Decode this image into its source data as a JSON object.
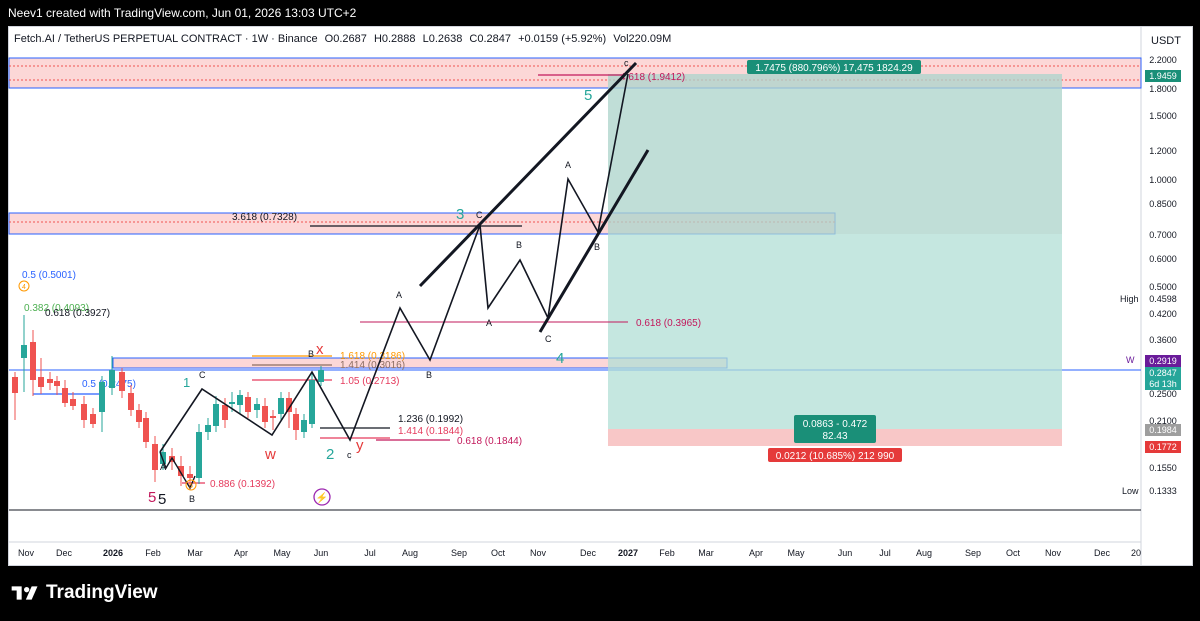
{
  "header": {
    "credit": "Neev1 created with TradingView.com, Jun 01, 2026 13:03 UTC+2"
  },
  "legend": {
    "symbol": "Fetch.AI / TetherUS PERPETUAL CONTRACT · 1W · Binance",
    "open": "O0.2687",
    "high": "H0.2888",
    "low": "L0.2638",
    "close": "C0.2847",
    "change": "+0.0159 (+5.92%)",
    "volume": "Vol220.09M"
  },
  "currency": "USDT",
  "price_axis": {
    "ticks": [
      "2.2000",
      "1.8000",
      "1.5000",
      "1.2000",
      "1.0000",
      "0.8500",
      "0.7000",
      "0.6000",
      "0.5000",
      "0.4200",
      "0.3600",
      "0.3000",
      "0.2500",
      "0.2100",
      "0.1800",
      "0.1550"
    ],
    "tags": {
      "target": "1.9459",
      "high_label": "High",
      "high": "0.4598",
      "w_label": "W",
      "w": "0.2919",
      "last": "0.2847",
      "countdown": "6d 13h",
      "gray": "0.1984",
      "stop": "0.1772",
      "low_label": "Low",
      "low": "0.1333"
    }
  },
  "time_axis": [
    "Nov",
    "Dec",
    "2026",
    "Feb",
    "Mar",
    "Apr",
    "May",
    "Jun",
    "Jul",
    "Aug",
    "Sep",
    "Oct",
    "Nov",
    "Dec",
    "2027",
    "Feb",
    "Mar",
    "Apr",
    "May",
    "Jun",
    "Jul",
    "Aug",
    "Sep",
    "Oct",
    "Nov",
    "Dec",
    "20"
  ],
  "position": {
    "target_label": "1.7475 (880.796%) 17,475 1824.29",
    "entry_label_1": "0.0863 - 0.472",
    "entry_label_2": "82.43",
    "stop_label": "0.0212 (10.685%) 212 990"
  },
  "fib_labels": {
    "f3618": "3.618 (0.7328)",
    "f4618": "4.618 (1.9412)",
    "f05": "0.5 (0.5001)",
    "f0382": "0.382 (0.4093)",
    "f0618a": "0.618 (0.3927)",
    "f05b": "0.5 (0.2475)",
    "f1618": "1.618 (0.3186)",
    "f1414a": "1.414 (0.3016)",
    "f105": "1.05 (0.2713)",
    "f1236": "1.236 (0.1992)",
    "f1414b": "1.414 (0.1844)",
    "f0618b": "0.618 (0.1844)",
    "f0886": "0.886 (0.1392)",
    "f0618c": "0.618 (0.3965)"
  },
  "waves": {
    "w1": "1",
    "w2": "2",
    "w3": "3",
    "w4": "4",
    "w5": "5",
    "x": "x",
    "y": "y",
    "w": "w",
    "five_red": "5",
    "five_black": "5",
    "A": "A",
    "B": "B",
    "C": "C",
    "a": "a",
    "c": "c"
  },
  "brand": "TradingView",
  "colors": {
    "up": "#26a69a",
    "down": "#ef5350",
    "target_zone": "#b2dfd5",
    "stop_zone": "#f8c7c7",
    "zone": "#fbd0d0",
    "line": "#2962ff"
  }
}
